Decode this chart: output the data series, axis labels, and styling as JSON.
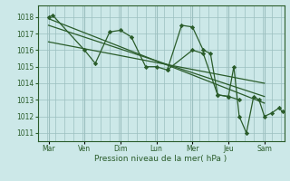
{
  "bg_color": "#cce8e8",
  "grid_color": "#9bbfbf",
  "line_color": "#2a5c2a",
  "marker_color": "#2a5c2a",
  "xlabel": "Pression niveau de la mer( hPa )",
  "xlabel_color": "#2a5c2a",
  "tick_color": "#2a5c2a",
  "ylim": [
    1010.5,
    1018.7
  ],
  "yticks": [
    1011,
    1012,
    1013,
    1014,
    1015,
    1016,
    1017,
    1018
  ],
  "day_labels": [
    "Mar",
    "Ven",
    "Dim",
    "Lun",
    "Mer",
    "Jeu",
    "Sam"
  ],
  "day_positions": [
    0,
    1,
    2,
    3,
    4,
    5,
    6
  ],
  "trend1_x": [
    0.0,
    6.0
  ],
  "trend1_y": [
    1017.9,
    1012.8
  ],
  "trend2_x": [
    0.0,
    6.0
  ],
  "trend2_y": [
    1017.5,
    1013.2
  ],
  "trend3_x": [
    0.0,
    6.0
  ],
  "trend3_y": [
    1016.5,
    1014.0
  ],
  "data1_x": [
    0.0,
    0.12,
    1.0,
    1.3,
    1.7,
    2.0,
    2.3,
    2.7,
    3.0,
    3.3,
    4.0,
    4.3,
    4.7,
    5.0,
    5.3
  ],
  "data1_y": [
    1018.0,
    1018.1,
    1016.0,
    1015.2,
    1017.1,
    1017.2,
    1016.8,
    1015.0,
    1015.0,
    1014.8,
    1016.0,
    1015.8,
    1013.3,
    1013.2,
    1013.0
  ],
  "data2_x": [
    3.3,
    3.7,
    4.0,
    4.3,
    4.5,
    4.7,
    5.0,
    5.15,
    5.3,
    5.5,
    5.7,
    5.85,
    6.0,
    6.2,
    6.4,
    6.5
  ],
  "data2_y": [
    1014.8,
    1017.5,
    1017.4,
    1016.0,
    1015.8,
    1013.3,
    1013.2,
    1015.0,
    1012.0,
    1011.0,
    1013.2,
    1013.0,
    1012.0,
    1012.2,
    1012.5,
    1012.3
  ],
  "xlim": [
    -0.3,
    6.55
  ]
}
